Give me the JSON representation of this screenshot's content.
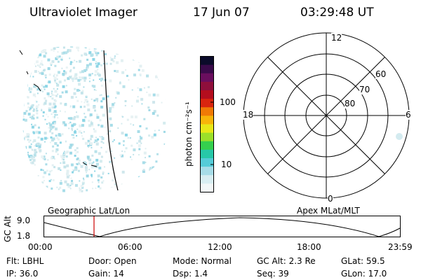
{
  "header": {
    "title": "Ultraviolet Imager",
    "date": "17 Jun 07",
    "time": "03:29:48 UT"
  },
  "colorbar": {
    "label": "photon cm⁻²s⁻¹",
    "ticks": [
      "100",
      "10"
    ],
    "colors": [
      "#0b0b2a",
      "#3a0a4a",
      "#6a0e5e",
      "#8f0f3c",
      "#b40e1e",
      "#d9250f",
      "#f07a06",
      "#f8b50a",
      "#e8e818",
      "#9be02a",
      "#35d04e",
      "#27c8a8",
      "#55ccd8",
      "#a7dde8",
      "#d8eef2",
      "#f2f7f8"
    ]
  },
  "polar_plot": {
    "hour_labels": {
      "top": "12",
      "left": "18",
      "right": "6",
      "bottom": "0"
    },
    "lat_labels": [
      "60",
      "70",
      "80"
    ]
  },
  "timeline": {
    "y_axis_label": "GC Alt",
    "y_ticks": [
      "9.0",
      "1.8"
    ],
    "left_title": "Geographic Lat/Lon",
    "right_title": "Apex MLat/MLT",
    "x_ticks": [
      "00:00",
      "06:00",
      "12:00",
      "18:00",
      "23:59"
    ],
    "marker_color": "#cc0000"
  },
  "info": {
    "filter": "Flt: LBHL",
    "ip": "IP: 36.0",
    "door": "Door: Open",
    "gain": "Gain: 14",
    "mode": "Mode: Normal",
    "dsp": "Dsp:    1.4",
    "gc_alt": "GC Alt: 2.3 Re",
    "seq": "Seq: 39",
    "glat": "GLat:   59.5",
    "glon": "GLon:   17.0"
  }
}
